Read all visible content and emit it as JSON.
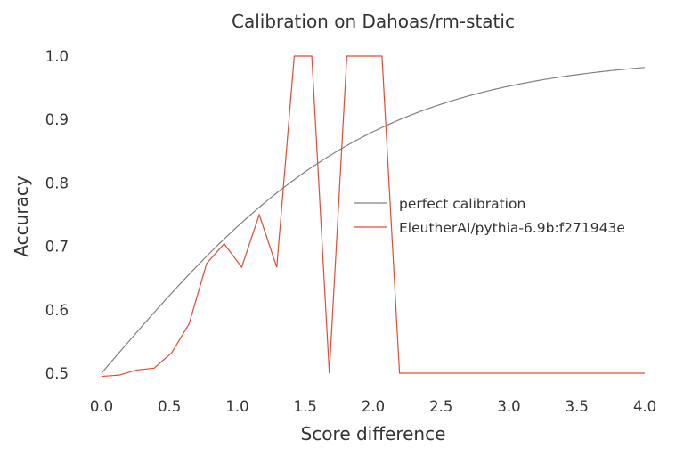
{
  "chart_data": {
    "type": "line",
    "title": "Calibration on Dahoas/rm-static",
    "xlabel": "Score difference",
    "ylabel": "Accuracy",
    "xlim": [
      0.0,
      4.0
    ],
    "ylim": [
      0.5,
      1.0
    ],
    "x_ticks": [
      "0.0",
      "0.5",
      "1.0",
      "1.5",
      "2.0",
      "2.5",
      "3.0",
      "3.5",
      "4.0"
    ],
    "y_ticks": [
      "0.5",
      "0.6",
      "0.7",
      "0.8",
      "0.9",
      "1.0"
    ],
    "grid": false,
    "legend_position": "center-right",
    "series": [
      {
        "name": "perfect calibration",
        "color": "#7f7f7f",
        "function": "sigmoid",
        "x": [
          0.0,
          0.25,
          0.5,
          0.75,
          1.0,
          1.25,
          1.5,
          1.75,
          2.0,
          2.25,
          2.5,
          2.75,
          3.0,
          3.25,
          3.5,
          3.75,
          4.0
        ],
        "y": [
          0.5,
          0.562,
          0.622,
          0.679,
          0.731,
          0.777,
          0.818,
          0.852,
          0.881,
          0.905,
          0.924,
          0.94,
          0.953,
          0.963,
          0.971,
          0.977,
          0.982
        ]
      },
      {
        "name": "EleutherAI/pythia-6.9b:f271943e",
        "color": "#e24a33",
        "x": [
          0.0,
          0.129,
          0.258,
          0.387,
          0.516,
          0.645,
          0.774,
          0.903,
          1.032,
          1.161,
          1.29,
          1.419,
          1.548,
          1.677,
          1.806,
          1.935,
          2.065,
          2.194,
          4.0
        ],
        "y": [
          0.495,
          0.497,
          0.505,
          0.508,
          0.532,
          0.578,
          0.673,
          0.704,
          0.667,
          0.75,
          0.667,
          1.0,
          1.0,
          0.5,
          1.0,
          1.0,
          1.0,
          0.5,
          0.5
        ]
      }
    ]
  }
}
